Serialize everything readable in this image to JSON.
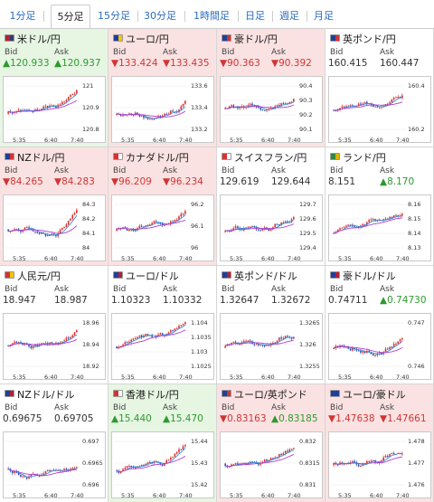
{
  "tabs": [
    {
      "label": "1分足",
      "active": false
    },
    {
      "label": "5分足",
      "active": true
    },
    {
      "label": "15分足",
      "active": false
    },
    {
      "label": "30分足",
      "active": false
    },
    {
      "label": "1時間足",
      "active": false
    },
    {
      "label": "日足",
      "active": false
    },
    {
      "label": "週足",
      "active": false
    },
    {
      "label": "月足",
      "active": false
    }
  ],
  "labels": {
    "bid": "Bid",
    "ask": "Ask"
  },
  "colors": {
    "up": "#2e9a2e",
    "down": "#d23434",
    "up_bg": "#e6f6e3",
    "down_bg": "#fbe2e2",
    "candle_up": "#d9322f",
    "candle_down": "#2f4fa8",
    "ma_short": "#3a8fd9",
    "ma_long": "#b23bd0"
  },
  "x_ticks": [
    "5:35",
    "6:40",
    "7:40"
  ],
  "pairs": [
    {
      "name": "米ドル/円",
      "flag": [
        "#b22234",
        "#3c3b6e"
      ],
      "bid": "▲120.933",
      "ask": "▲120.937",
      "trend": "up",
      "yticks": [
        "121",
        "120.9",
        "120.8"
      ],
      "ylim": [
        120.74,
        121.04
      ]
    },
    {
      "name": "ユーロ/円",
      "flag": [
        "#1f3f9a",
        "#f2c500"
      ],
      "bid": "▼133.424",
      "ask": "▼133.435",
      "trend": "down",
      "yticks": [
        "133.6",
        "133.4",
        "133.2"
      ],
      "ylim": [
        133.1,
        133.68
      ]
    },
    {
      "name": "豪ドル/円",
      "flag": [
        "#1f3f9a",
        "#d23434"
      ],
      "bid": "▼90.363",
      "ask": "▼90.392",
      "trend": "down",
      "yticks": [
        "90.4",
        "90.3",
        "90.2",
        "90.1"
      ],
      "ylim": [
        90.05,
        90.45
      ]
    },
    {
      "name": "英ポンド/円",
      "flag": [
        "#1f3f9a",
        "#d23434"
      ],
      "bid": "160.415",
      "ask": "160.447",
      "trend": "flat",
      "yticks": [
        "160.4",
        "160.2"
      ],
      "ylim": [
        160.08,
        160.55
      ]
    },
    {
      "name": "NZドル/円",
      "flag": [
        "#1f3f9a",
        "#d23434"
      ],
      "bid": "▼84.265",
      "ask": "▼84.283",
      "trend": "down",
      "yticks": [
        "84.3",
        "84.2",
        "84.1",
        "84"
      ],
      "ylim": [
        83.96,
        84.34
      ]
    },
    {
      "name": "カナダドル/円",
      "flag": [
        "#d23434",
        "#ffffff"
      ],
      "bid": "▼96.209",
      "ask": "▼96.234",
      "trend": "down",
      "yticks": [
        "96.2",
        "96.1",
        "96"
      ],
      "ylim": [
        95.95,
        96.3
      ]
    },
    {
      "name": "スイスフラン/円",
      "flag": [
        "#d23434",
        "#ffffff"
      ],
      "bid": "129.619",
      "ask": "129.644",
      "trend": "flat",
      "yticks": [
        "129.7",
        "129.6",
        "129.5",
        "129.4"
      ],
      "ylim": [
        129.37,
        129.72
      ]
    },
    {
      "name": "ランド/円",
      "flag": [
        "#2e8b3a",
        "#e0b000"
      ],
      "bid": "8.151",
      "ask": "▲8.170",
      "trend": "flat",
      "ask_trend": "up",
      "yticks": [
        "8.16",
        "8.15",
        "8.14",
        "8.13"
      ],
      "ylim": [
        8.126,
        8.166
      ]
    },
    {
      "name": "人民元/円",
      "flag": [
        "#d23434",
        "#f2c500"
      ],
      "bid": "18.947",
      "ask": "18.987",
      "trend": "flat",
      "yticks": [
        "18.96",
        "18.94",
        "18.92"
      ],
      "ylim": [
        18.912,
        18.968
      ]
    },
    {
      "name": "ユーロ/ドル",
      "flag": [
        "#1f3f9a",
        "#b22234"
      ],
      "bid": "1.10323",
      "ask": "1.10332",
      "trend": "flat",
      "yticks": [
        "1.104",
        "1.1035",
        "1.103",
        "1.1025"
      ],
      "ylim": [
        1.1022,
        1.1043
      ]
    },
    {
      "name": "英ポンド/ドル",
      "flag": [
        "#1f3f9a",
        "#b22234"
      ],
      "bid": "1.32647",
      "ask": "1.32672",
      "trend": "flat",
      "yticks": [
        "1.3265",
        "1.326",
        "1.3255"
      ],
      "ylim": [
        1.3252,
        1.3272
      ]
    },
    {
      "name": "豪ドル/ドル",
      "flag": [
        "#1f3f9a",
        "#b22234"
      ],
      "bid": "0.74711",
      "ask": "▲0.74730",
      "trend": "flat",
      "ask_trend": "up",
      "yticks": [
        "0.747",
        "0.746"
      ],
      "ylim": [
        0.7455,
        0.7476
      ]
    },
    {
      "name": "NZドル/ドル",
      "flag": [
        "#1f3f9a",
        "#b22234"
      ],
      "bid": "0.69675",
      "ask": "0.69705",
      "trend": "flat",
      "yticks": [
        "0.697",
        "0.6965",
        "0.696"
      ],
      "ylim": [
        0.6957,
        0.6972
      ]
    },
    {
      "name": "香港ドル/円",
      "flag": [
        "#d23434",
        "#ffffff"
      ],
      "bid": "▲15.440",
      "ask": "▲15.470",
      "trend": "up",
      "yticks": [
        "15.44",
        "15.43",
        "15.42"
      ],
      "ylim": [
        15.412,
        15.446
      ]
    },
    {
      "name": "ユーロ/英ポンド",
      "flag": [
        "#1f3f9a",
        "#d23434"
      ],
      "bid": "▼0.83163",
      "ask": "▲0.83185",
      "trend": "down",
      "ask_trend": "up",
      "yticks": [
        "0.832",
        "0.8315",
        "0.831"
      ],
      "ylim": [
        0.8308,
        0.8323
      ]
    },
    {
      "name": "ユーロ/豪ドル",
      "flag": [
        "#1f3f9a",
        "#1f3f9a"
      ],
      "bid": "▼1.47638",
      "ask": "▼1.47661",
      "trend": "down",
      "yticks": [
        "1.478",
        "1.477",
        "1.476"
      ],
      "ylim": [
        1.4755,
        1.4785
      ]
    }
  ]
}
